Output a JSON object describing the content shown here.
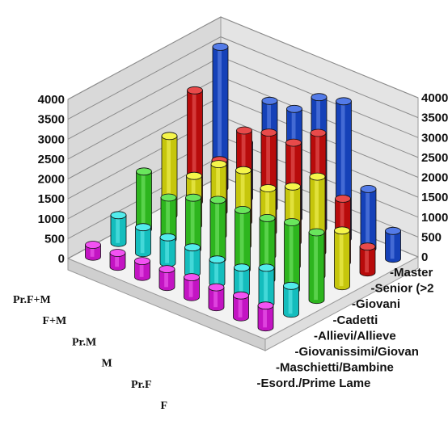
{
  "chart_data": {
    "type": "bar",
    "title": "",
    "xlabel": "",
    "ylabel": "",
    "ylim": [
      0,
      4000
    ],
    "y_ticks": [
      "4000",
      "3500",
      "3000",
      "2500",
      "2000",
      "1500",
      "1000",
      "500",
      "0"
    ],
    "grid": true,
    "groups": [
      "Pr.F+M",
      "F+M",
      "Pr.M",
      "M",
      "Pr.F",
      "F"
    ],
    "categories": [
      "-Master",
      "-Senior (>2",
      "-Giovani",
      "-Cadetti",
      "-Allievi/Allieve",
      "-Giovanissimi/Giovan",
      "-Maschietti/Bambine",
      "-Esord./Prime Lame"
    ],
    "series": [
      {
        "color": "#1a4fe0",
        "values": [
          3550,
          1400,
          2700,
          2750,
          3300,
          3450,
          1500,
          700
        ]
      },
      {
        "color": "#e00d0d",
        "values": [
          2800,
          1300,
          2300,
          2500,
          2500,
          3000,
          1600,
          650
        ]
      },
      {
        "color": "#f2f20f",
        "values": [
          2000,
          1250,
          1800,
          1900,
          1700,
          2000,
          2500,
          1400
        ]
      },
      {
        "color": "#37dd25",
        "values": [
          1450,
          1050,
          1300,
          1500,
          1500,
          1550,
          1700,
          1700
        ]
      },
      {
        "color": "#18e6e6",
        "values": [
          700,
          650,
          650,
          650,
          600,
          650,
          900,
          700
        ]
      },
      {
        "color": "#ee18ee",
        "values": [
          300,
          350,
          400,
          450,
          500,
          500,
          550,
          550
        ]
      }
    ]
  }
}
